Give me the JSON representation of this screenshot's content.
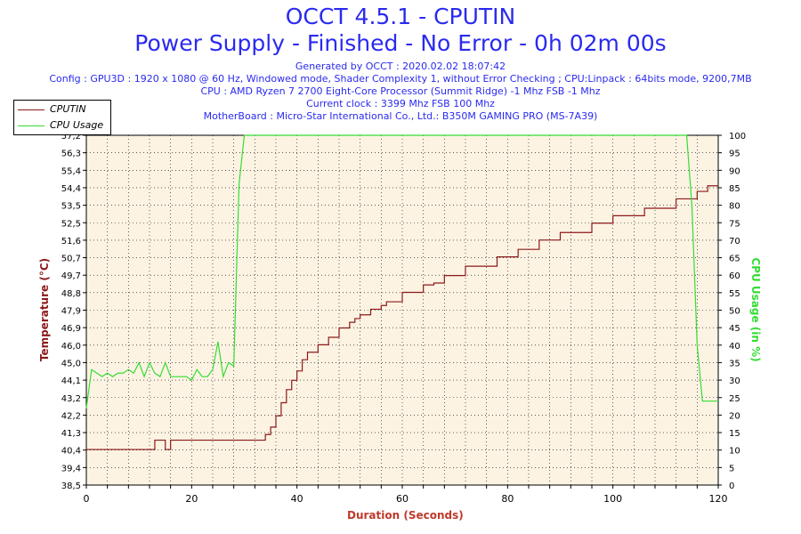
{
  "header": {
    "title": "OCCT 4.5.1 - CPUTIN",
    "subtitle": "Power Supply - Finished - No Error - 0h 02m 00s",
    "info_lines": [
      "Generated by OCCT : 2020.02.02 18:07:42",
      "Config : GPU3D : 1920 x 1080 @ 60 Hz, Windowed mode, Shader Complexity 1, without Error Checking ; CPU:Linpack : 64bits mode, 9200,7MB",
      "CPU : AMD Ryzen 7 2700 Eight-Core Processor (Summit Ridge) -1 Mhz FSB -1 Mhz",
      "Current clock : 3399 Mhz FSB 100 Mhz",
      "MotherBoard : Micro-Star International Co., Ltd.: B350M GAMING PRO (MS-7A39)"
    ]
  },
  "legend": {
    "items": [
      {
        "label": "CPUTIN",
        "color": "#8b1a1a"
      },
      {
        "label": "CPU Usage",
        "color": "#33dd33"
      }
    ]
  },
  "chart_data": {
    "type": "line",
    "xlabel": "Duration (Seconds)",
    "ylabel_left": "Temperature (°C)",
    "ylabel_right": "CPU Usage (in %)",
    "xlim": [
      0,
      120
    ],
    "ylim_left": [
      38.5,
      57.2
    ],
    "ylim_right": [
      0,
      100
    ],
    "x_ticks": [
      "0",
      "20",
      "40",
      "60",
      "80",
      "100",
      "120"
    ],
    "left_ticks": [
      "38,5",
      "39,4",
      "40,4",
      "41,3",
      "42,2",
      "43,2",
      "44,1",
      "45,0",
      "46,0",
      "46,9",
      "47,9",
      "48,8",
      "49,7",
      "50,7",
      "51,6",
      "52,5",
      "53,5",
      "54,4",
      "55,4",
      "56,3",
      "57,2"
    ],
    "right_ticks": [
      "0",
      "5",
      "10",
      "15",
      "20",
      "25",
      "30",
      "35",
      "40",
      "45",
      "50",
      "55",
      "60",
      "65",
      "70",
      "75",
      "80",
      "85",
      "90",
      "95",
      "100"
    ],
    "grid": true,
    "plot_background": "#fdf3e3",
    "series": [
      {
        "name": "CPUTIN",
        "axis": "left",
        "color": "#8b1a1a",
        "x": [
          0,
          12,
          13,
          14,
          15,
          16,
          17,
          25,
          30,
          33,
          34,
          35,
          36,
          37,
          38,
          39,
          40,
          41,
          42,
          43,
          44,
          45,
          46,
          47,
          48,
          49,
          50,
          51,
          52,
          53,
          54,
          55,
          56,
          57,
          58,
          60,
          62,
          64,
          66,
          68,
          70,
          72,
          74,
          76,
          78,
          80,
          82,
          84,
          86,
          88,
          90,
          92,
          94,
          96,
          98,
          100,
          102,
          104,
          106,
          108,
          110,
          112,
          114,
          116,
          118,
          120
        ],
        "y": [
          40.4,
          40.4,
          40.9,
          40.9,
          40.4,
          40.9,
          40.9,
          40.9,
          40.9,
          40.9,
          41.2,
          41.6,
          42.2,
          42.9,
          43.6,
          44.1,
          44.6,
          45.2,
          45.6,
          45.6,
          46.0,
          46.0,
          46.4,
          46.4,
          46.9,
          46.9,
          47.2,
          47.4,
          47.6,
          47.6,
          47.9,
          47.9,
          48.1,
          48.3,
          48.3,
          48.8,
          48.8,
          49.2,
          49.3,
          49.7,
          49.7,
          50.2,
          50.2,
          50.2,
          50.7,
          50.7,
          51.1,
          51.1,
          51.6,
          51.6,
          52.0,
          52.0,
          52.0,
          52.5,
          52.5,
          52.9,
          52.9,
          52.9,
          53.3,
          53.3,
          53.3,
          53.8,
          53.8,
          54.2,
          54.5,
          54.5
        ]
      },
      {
        "name": "CPU Usage",
        "axis": "right",
        "color": "#33dd33",
        "x": [
          0,
          1,
          2,
          3,
          4,
          5,
          6,
          7,
          8,
          9,
          10,
          11,
          12,
          13,
          14,
          15,
          16,
          17,
          18,
          19,
          20,
          21,
          22,
          23,
          24,
          25,
          26,
          27,
          28,
          29,
          30,
          31,
          40,
          60,
          80,
          100,
          114,
          115,
          116,
          117,
          118,
          120
        ],
        "y": [
          22,
          33,
          32,
          31,
          32,
          31,
          32,
          32,
          33,
          32,
          35,
          31,
          35,
          32,
          31,
          35,
          31,
          31,
          31,
          31,
          30,
          33,
          31,
          31,
          33,
          41,
          31,
          35,
          34,
          86,
          100,
          100,
          100,
          100,
          100,
          100,
          100,
          80,
          40,
          24,
          24,
          24
        ]
      }
    ]
  }
}
